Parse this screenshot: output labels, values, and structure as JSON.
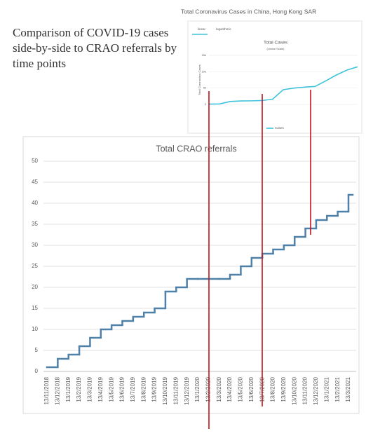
{
  "heading": "Comparison of COVID-19 cases side-by-side to CRAO referrals by time points",
  "chart_data": [
    {
      "type": "line",
      "title": "Total Coronavirus Cases in China, Hong Kong SAR",
      "tabs": [
        "linear",
        "logarithmic"
      ],
      "subtitle_title": "Total Cases",
      "subtitle": "(Linear Scale)",
      "ylabel": "Total Coronavirus Cases",
      "categories": [
        null,
        null,
        null,
        null,
        null,
        null,
        null,
        null,
        null,
        null,
        null,
        null,
        null,
        null,
        null
      ],
      "series": [
        {
          "name": "Cases",
          "color": "#3fc3dc",
          "values": [
            100,
            150,
            900,
            1050,
            1100,
            1200,
            1600,
            4500,
            5000,
            5300,
            5500,
            7200,
            9000,
            10500,
            11500
          ]
        }
      ],
      "ylim": [
        0,
        15000
      ],
      "yticks": [
        0,
        {
          "value": 5000,
          "label": "5k"
        },
        {
          "value": 10000,
          "label": "10k"
        },
        {
          "value": 15000,
          "label": "15k"
        }
      ],
      "grid": true
    },
    {
      "type": "step",
      "title": "Total CRAO referrals",
      "color": "#4f81a8",
      "categories": [
        "13/11/2018",
        "13/12/2018",
        "13/1/2019",
        "13/2/2019",
        "13/3/2019",
        "13/4/2019",
        "13/5/2019",
        "13/6/2019",
        "13/7/2019",
        "13/8/2019",
        "13/9/2019",
        "13/10/2019",
        "13/11/2019",
        "13/12/2019",
        "13/1/2020",
        "13/2/2020",
        "13/3/2020",
        "13/4/2020",
        "13/5/2020",
        "13/6/2020",
        "13/7/2020",
        "13/8/2020",
        "13/9/2020",
        "13/10/2020",
        "13/11/2020",
        "13/12/2020",
        "13/1/2021",
        "13/2/2021",
        "13/3/2021"
      ],
      "values": [
        1,
        3,
        4,
        6,
        8,
        10,
        11,
        12,
        13,
        14,
        15,
        19,
        20,
        22,
        22,
        22,
        22,
        23,
        25,
        27,
        28,
        29,
        30,
        32,
        34,
        36,
        37,
        38,
        42
      ],
      "ylim": [
        0,
        50
      ],
      "yticks": [
        0,
        5,
        10,
        15,
        20,
        25,
        30,
        35,
        40,
        45,
        50
      ],
      "grid": true
    }
  ]
}
